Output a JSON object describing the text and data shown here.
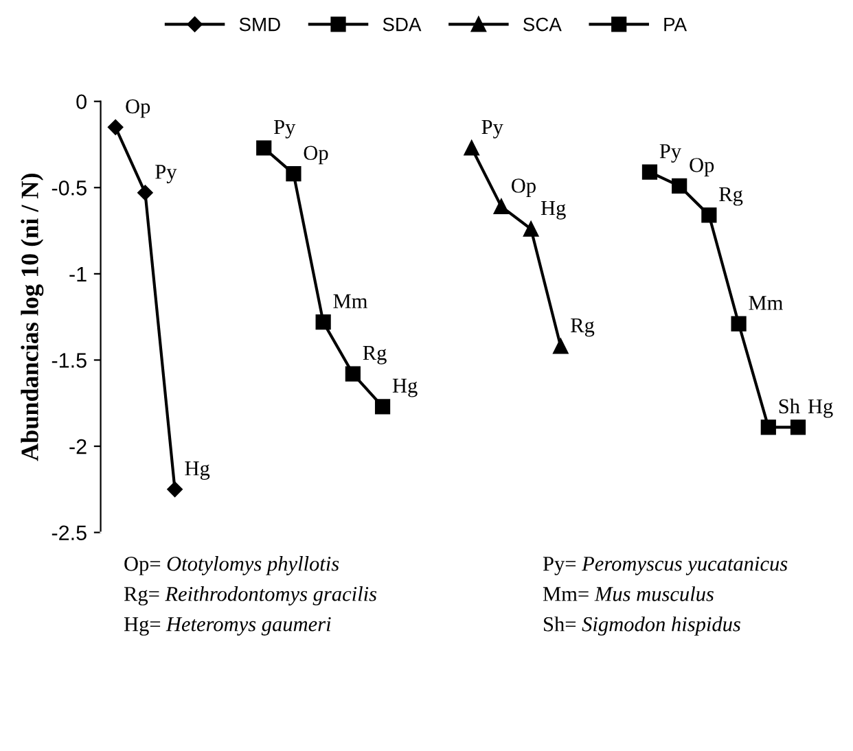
{
  "chart_data": {
    "type": "line",
    "ylabel": "Abundancias log 10 (ni / N)",
    "categories": [
      null,
      null,
      null,
      null,
      null,
      null,
      null,
      null,
      null,
      null,
      null,
      null,
      null,
      null,
      null,
      null,
      null,
      null,
      null,
      null,
      null,
      null,
      null,
      null
    ],
    "series": [
      {
        "name": "SMD",
        "color": "#000000",
        "marker": "diamond",
        "values": [
          -0.15,
          -0.53,
          -2.25,
          null,
          null,
          null,
          null,
          null,
          null,
          null,
          null,
          null,
          null,
          null,
          null,
          null,
          null,
          null,
          null,
          null,
          null,
          null,
          null,
          null
        ],
        "value_labels": [
          "Op",
          "Py",
          "Hg",
          null,
          null,
          null,
          null,
          null,
          null,
          null,
          null,
          null,
          null,
          null,
          null,
          null,
          null,
          null,
          null,
          null,
          null,
          null,
          null,
          null
        ]
      },
      {
        "name": "SDA",
        "color": "#000000",
        "marker": "square",
        "values": [
          null,
          null,
          null,
          null,
          null,
          -0.27,
          -0.42,
          -1.28,
          -1.58,
          -1.77,
          null,
          null,
          null,
          null,
          null,
          null,
          null,
          null,
          null,
          null,
          null,
          null,
          null,
          null
        ],
        "value_labels": [
          null,
          null,
          null,
          null,
          null,
          "Py",
          "Op",
          "Mm",
          "Rg",
          "Hg",
          null,
          null,
          null,
          null,
          null,
          null,
          null,
          null,
          null,
          null,
          null,
          null,
          null,
          null
        ]
      },
      {
        "name": "SCA",
        "color": "#000000",
        "marker": "triangle",
        "values": [
          null,
          null,
          null,
          null,
          null,
          null,
          null,
          null,
          null,
          null,
          null,
          null,
          -0.27,
          -0.61,
          -0.74,
          -1.42,
          null,
          null,
          null,
          null,
          null,
          null,
          null,
          null
        ],
        "value_labels": [
          null,
          null,
          null,
          null,
          null,
          null,
          null,
          null,
          null,
          null,
          null,
          null,
          "Py",
          "Op",
          "Hg",
          "Rg",
          null,
          null,
          null,
          null,
          null,
          null,
          null,
          null
        ]
      },
      {
        "name": "PA",
        "color": "#000000",
        "marker": "square",
        "values": [
          null,
          null,
          null,
          null,
          null,
          null,
          null,
          null,
          null,
          null,
          null,
          null,
          null,
          null,
          null,
          null,
          null,
          null,
          -0.41,
          -0.49,
          -0.66,
          -1.29,
          -1.89,
          -1.89
        ],
        "value_labels": [
          null,
          null,
          null,
          null,
          null,
          null,
          null,
          null,
          null,
          null,
          null,
          null,
          null,
          null,
          null,
          null,
          null,
          null,
          "Py",
          "Op",
          "Rg",
          "Mm",
          "Sh",
          "Hg"
        ]
      }
    ],
    "ylim": [
      -2.5,
      0
    ],
    "yticks": [
      -2.5,
      -2,
      -1.5,
      -1,
      -0.5,
      0
    ],
    "tick_labels": "y",
    "grid": false,
    "legend": "top",
    "line_style": "solid",
    "annotations": [
      "Op= Ototylomys phyllotis",
      "Py= Peromyscus yucatanicus",
      "Rg= Reithrodontomys gracilis",
      "Mm= Mus musculus",
      "Hg= Heteromys gaumeri",
      "Sh= Sigmodon hispidus"
    ]
  }
}
